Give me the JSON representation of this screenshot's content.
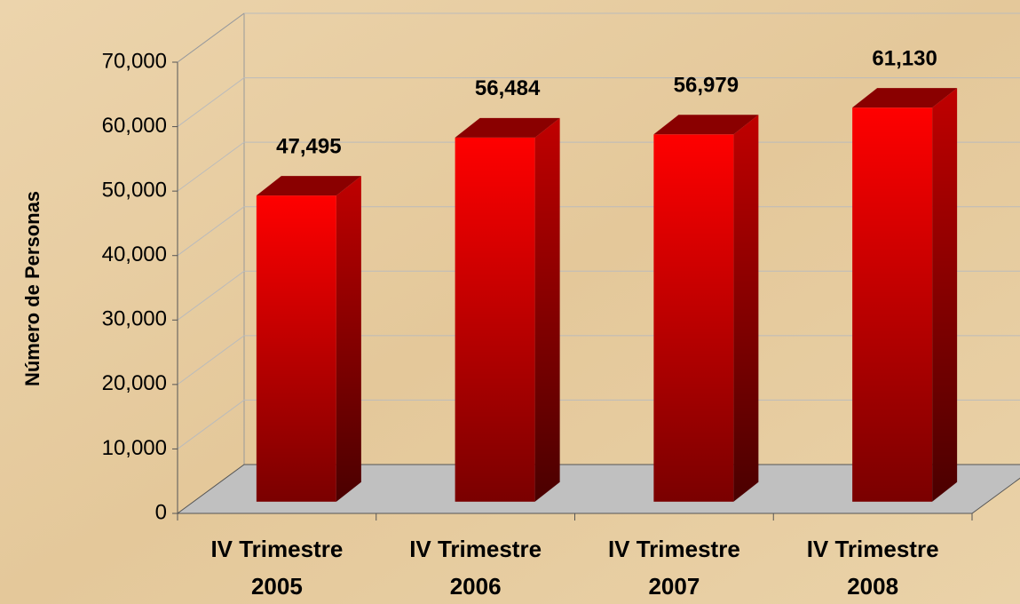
{
  "chart_data": {
    "type": "bar3d",
    "y_label": "Número de Personas",
    "categories": [
      [
        "IV Trimestre",
        "2005"
      ],
      [
        "IV Trimestre",
        "2006"
      ],
      [
        "IV Trimestre",
        "2007"
      ],
      [
        "IV Trimestre",
        "2008"
      ]
    ],
    "values": [
      47495,
      56484,
      56979,
      61130
    ],
    "value_labels": [
      "47,495",
      "56,484",
      "56,979",
      "61,130"
    ],
    "color": "#ff0000",
    "ylim": [
      0,
      70000
    ],
    "yticks": [
      0,
      {
        "value": 10000,
        "label": "10,000"
      },
      {
        "value": 20000,
        "label": "20,000"
      },
      {
        "value": 30000,
        "label": "30,000"
      },
      {
        "value": 40000,
        "label": "40,000"
      },
      {
        "value": 50000,
        "label": "50,000"
      },
      {
        "value": 60000,
        "label": "60,000"
      },
      {
        "value": 70000,
        "label": "70,000"
      }
    ],
    "grid": true
  }
}
